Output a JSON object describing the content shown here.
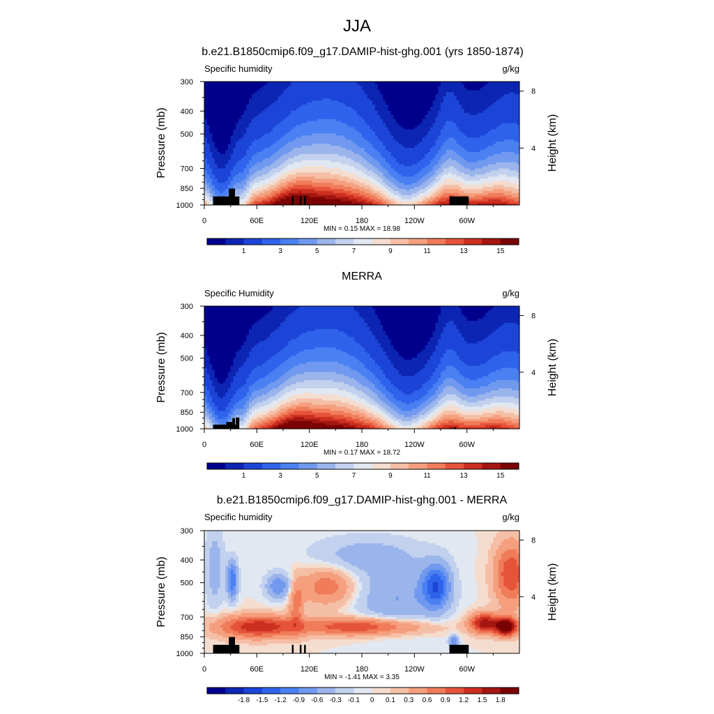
{
  "page_title": "JJA",
  "chart_data": [
    {
      "type": "heatmap",
      "title": "b.e21.B1850cmip6.f09_g17.DAMIP-hist-ghg.001 (yrs 1850-1874)",
      "left_label": "Specific humidity",
      "units": "g/kg",
      "ylabel": "Pressure (mb)",
      "ylabel_right": "Height (km)",
      "y_ticks": [
        "300",
        "400",
        "500",
        "700",
        "850",
        "1000"
      ],
      "y_ticks_values": [
        300,
        400,
        500,
        700,
        850,
        1000
      ],
      "y_right_ticks": [
        "8",
        "4"
      ],
      "y_right_ticks_values": [
        8,
        4
      ],
      "x_ticks": [
        "0",
        "60E",
        "120E",
        "180",
        "120W",
        "60W"
      ],
      "x_ticks_values": [
        0,
        60,
        120,
        180,
        240,
        300
      ],
      "xlim": [
        0,
        360
      ],
      "ylim": [
        1000,
        300
      ],
      "minmax_text": "MIN =   0.15  MAX =  18.98",
      "colorbar": {
        "levels": [
          0.5,
          1,
          2,
          3,
          4,
          5,
          6,
          7,
          8,
          9,
          10,
          11,
          12,
          13,
          14,
          15
        ],
        "labels": [
          "1",
          "3",
          "5",
          "7",
          "9",
          "11",
          "13",
          "15"
        ],
        "label_values": [
          1,
          3,
          5,
          7,
          9,
          11,
          13,
          15
        ],
        "colors": [
          "#00008c",
          "#0c25b2",
          "#1c45d8",
          "#2f63ec",
          "#4a80f2",
          "#7099ef",
          "#9bb5ec",
          "#c2d1ee",
          "#e2e8f2",
          "#f4ddcf",
          "#f5bfa6",
          "#f59f7e",
          "#f07c5a",
          "#e5543a",
          "#cc2f20",
          "#a41612",
          "#7a0303"
        ]
      }
    },
    {
      "type": "heatmap",
      "title": "MERRA",
      "left_label": "Specific Humidity",
      "units": "g/kg",
      "ylabel": "Pressure (mb)",
      "ylabel_right": "Height (km)",
      "y_ticks": [
        "300",
        "400",
        "500",
        "700",
        "850",
        "1000"
      ],
      "y_ticks_values": [
        300,
        400,
        500,
        700,
        850,
        1000
      ],
      "y_right_ticks": [
        "8",
        "4"
      ],
      "y_right_ticks_values": [
        8,
        4
      ],
      "x_ticks": [
        "0",
        "60E",
        "120E",
        "180",
        "120W",
        "60W"
      ],
      "x_ticks_values": [
        0,
        60,
        120,
        180,
        240,
        300
      ],
      "xlim": [
        0,
        360
      ],
      "ylim": [
        1000,
        300
      ],
      "minmax_text": "MIN =   0.17  MAX =  18.72",
      "colorbar": {
        "levels": [
          0.5,
          1,
          2,
          3,
          4,
          5,
          6,
          7,
          8,
          9,
          10,
          11,
          12,
          13,
          14,
          15
        ],
        "labels": [
          "1",
          "3",
          "5",
          "7",
          "9",
          "11",
          "13",
          "15"
        ],
        "label_values": [
          1,
          3,
          5,
          7,
          9,
          11,
          13,
          15
        ],
        "colors": [
          "#00008c",
          "#0c25b2",
          "#1c45d8",
          "#2f63ec",
          "#4a80f2",
          "#7099ef",
          "#9bb5ec",
          "#c2d1ee",
          "#e2e8f2",
          "#f4ddcf",
          "#f5bfa6",
          "#f59f7e",
          "#f07c5a",
          "#e5543a",
          "#cc2f20",
          "#a41612",
          "#7a0303"
        ]
      }
    },
    {
      "type": "heatmap",
      "title": "b.e21.B1850cmip6.f09_g17.DAMIP-hist-ghg.001 - MERRA",
      "left_label": "Specific humidity",
      "units": "g/kg",
      "ylabel": "Pressure (mb)",
      "ylabel_right": "Height (km)",
      "y_ticks": [
        "300",
        "400",
        "500",
        "700",
        "850",
        "1000"
      ],
      "y_ticks_values": [
        300,
        400,
        500,
        700,
        850,
        1000
      ],
      "y_right_ticks": [
        "8",
        "4"
      ],
      "y_right_ticks_values": [
        8,
        4
      ],
      "x_ticks": [
        "0",
        "60E",
        "120E",
        "180",
        "120W",
        "60W"
      ],
      "x_ticks_values": [
        0,
        60,
        120,
        180,
        240,
        300
      ],
      "xlim": [
        0,
        360
      ],
      "ylim": [
        1000,
        300
      ],
      "minmax_text": "MIN =  -1.41  MAX =   3.35",
      "colorbar": {
        "levels": [
          -2.1,
          -1.8,
          -1.5,
          -1.2,
          -0.9,
          -0.6,
          -0.3,
          -0.1,
          0,
          0.1,
          0.3,
          0.6,
          0.9,
          1.2,
          1.5,
          1.8
        ],
        "labels": [
          "-1.8",
          "-1.5",
          "-1.2",
          "-0.9",
          "-0.6",
          "-0.3",
          "-0.1",
          "0",
          "0.1",
          "0.3",
          "0.6",
          "0.9",
          "1.2",
          "1.5",
          "1.8"
        ],
        "label_values": [
          -1.8,
          -1.5,
          -1.2,
          -0.9,
          -0.6,
          -0.3,
          -0.1,
          0,
          0.1,
          0.3,
          0.6,
          0.9,
          1.2,
          1.5,
          1.8
        ],
        "colors": [
          "#00008c",
          "#0c25b2",
          "#1c45d8",
          "#2f63ec",
          "#4a80f2",
          "#7099ef",
          "#9bb5ec",
          "#c2d1ee",
          "#e2e8f2",
          "#f4ddcf",
          "#f5bfa6",
          "#f59f7e",
          "#f07c5a",
          "#e5543a",
          "#cc2f20",
          "#a41612",
          "#7a0303"
        ]
      }
    }
  ]
}
